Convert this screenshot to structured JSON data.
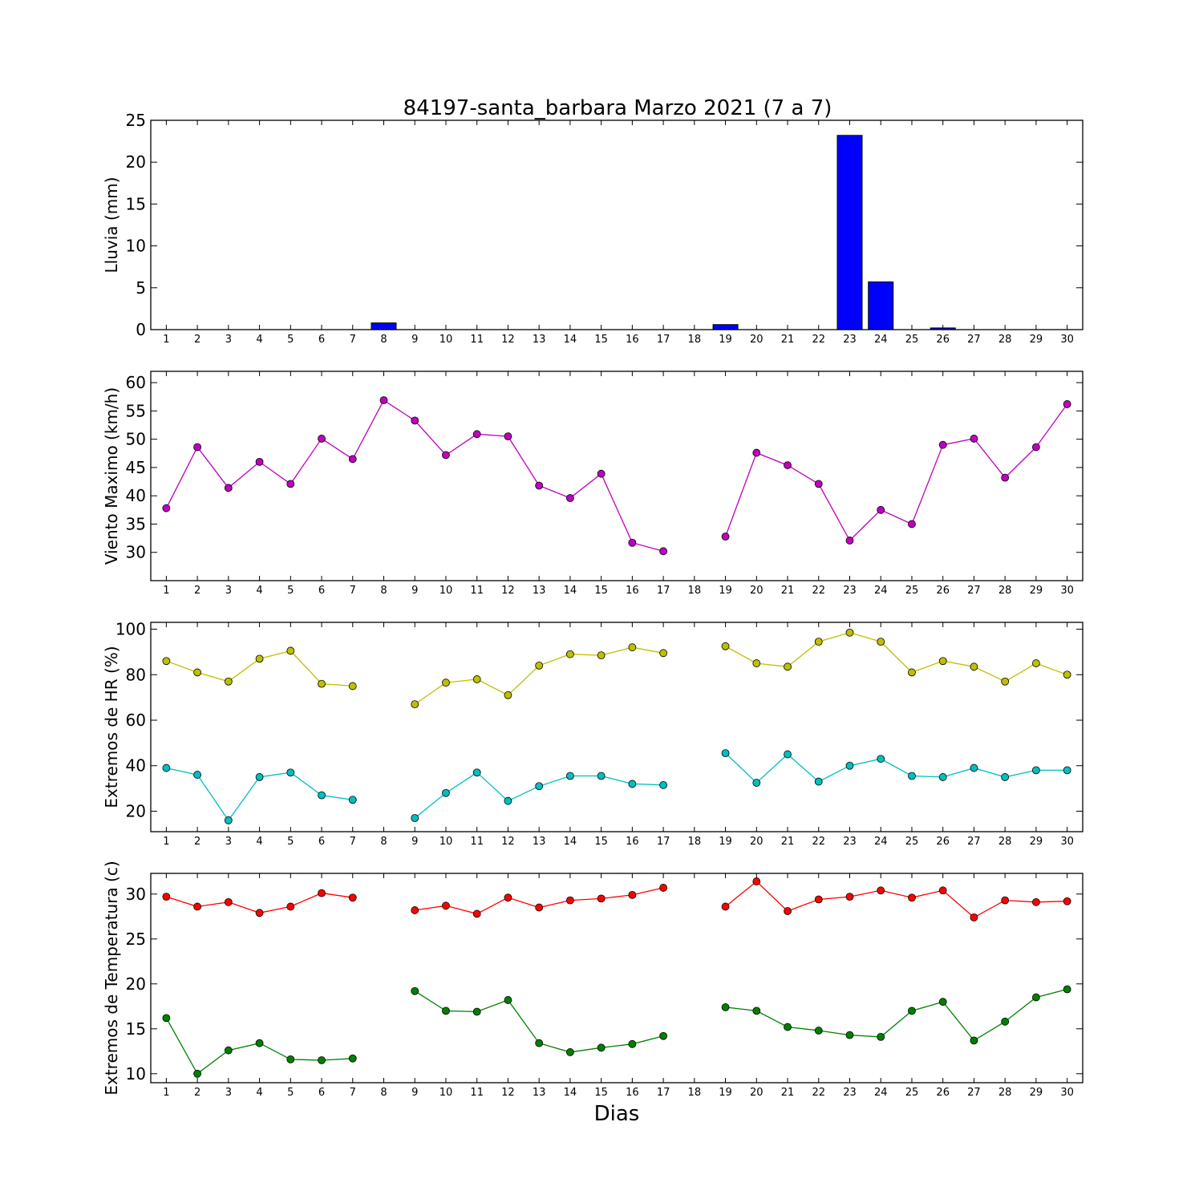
{
  "figure": {
    "title": "84197-santa_barbara Marzo 2021  (7 a 7)",
    "xlabel": "Dias"
  },
  "chart_data": [
    {
      "type": "bar",
      "ylabel": "Lluvia (mm)",
      "categories": [
        1,
        2,
        3,
        4,
        5,
        6,
        7,
        8,
        9,
        10,
        11,
        12,
        13,
        14,
        15,
        16,
        17,
        18,
        19,
        20,
        21,
        22,
        23,
        24,
        25,
        26,
        27,
        28,
        29,
        30
      ],
      "xlim": [
        0.5,
        30.5
      ],
      "ylim": [
        0,
        25
      ],
      "yticks": [
        0,
        5,
        10,
        15,
        20,
        25
      ],
      "color": "#0000ff",
      "series": [
        {
          "values": [
            0,
            0,
            0,
            0,
            0,
            0,
            0,
            0.8,
            0,
            0,
            0,
            0,
            0,
            0,
            0,
            0,
            0,
            0,
            0.6,
            0,
            0,
            0,
            23.2,
            5.7,
            0,
            0.2,
            0,
            0,
            0,
            0
          ]
        }
      ]
    },
    {
      "type": "line",
      "ylabel": "Viento Maximo (km/h)",
      "x": [
        1,
        2,
        3,
        4,
        5,
        6,
        7,
        8,
        9,
        10,
        11,
        12,
        13,
        14,
        15,
        16,
        17,
        18,
        19,
        20,
        21,
        22,
        23,
        24,
        25,
        26,
        27,
        28,
        29,
        30
      ],
      "xlim": [
        0.5,
        30.5
      ],
      "ylim": [
        25,
        62
      ],
      "yticks": [
        30,
        35,
        40,
        45,
        50,
        55,
        60
      ],
      "series": [
        {
          "color": "#bf00bf",
          "values": [
            37.8,
            48.6,
            41.4,
            46,
            42.1,
            50.1,
            46.5,
            56.9,
            53.3,
            47.2,
            50.9,
            50.5,
            41.8,
            39.6,
            43.9,
            31.7,
            30.2,
            null,
            32.8,
            47.6,
            45.4,
            42.1,
            32.1,
            37.5,
            35,
            49,
            50.1,
            43.2,
            48.6,
            56.2
          ]
        }
      ]
    },
    {
      "type": "line",
      "ylabel": "Extremos de HR (%)",
      "x": [
        1,
        2,
        3,
        4,
        5,
        6,
        7,
        8,
        9,
        10,
        11,
        12,
        13,
        14,
        15,
        16,
        17,
        18,
        19,
        20,
        21,
        22,
        23,
        24,
        25,
        26,
        27,
        28,
        29,
        30
      ],
      "xlim": [
        0.5,
        30.5
      ],
      "ylim": [
        11,
        103
      ],
      "yticks": [
        20,
        40,
        60,
        80,
        100
      ],
      "series": [
        {
          "color": "#bfbf00",
          "values": [
            86,
            81,
            77,
            87,
            90.5,
            76,
            75,
            null,
            67,
            76.5,
            78,
            71,
            84,
            89,
            88.5,
            92,
            89.5,
            null,
            92.5,
            85,
            83.5,
            94.5,
            98.5,
            94.5,
            81,
            86,
            83.5,
            77,
            85,
            80
          ]
        },
        {
          "color": "#00bfbf",
          "values": [
            39,
            36,
            16,
            35,
            37,
            27,
            25,
            null,
            17,
            28,
            37,
            24.5,
            31,
            35.5,
            35.5,
            32,
            31.5,
            null,
            45.5,
            32.5,
            45,
            33,
            40,
            43,
            35.5,
            35,
            39,
            35,
            38,
            38
          ]
        }
      ]
    },
    {
      "type": "line",
      "ylabel": "Extremos de Temperatura (c)",
      "x": [
        1,
        2,
        3,
        4,
        5,
        6,
        7,
        8,
        9,
        10,
        11,
        12,
        13,
        14,
        15,
        16,
        17,
        18,
        19,
        20,
        21,
        22,
        23,
        24,
        25,
        26,
        27,
        28,
        29,
        30
      ],
      "xlim": [
        0.5,
        30.5
      ],
      "ylim": [
        9,
        32.3
      ],
      "yticks": [
        10,
        15,
        20,
        25,
        30
      ],
      "series": [
        {
          "color": "#ff0000",
          "values": [
            29.7,
            28.6,
            29.1,
            27.9,
            28.6,
            30.1,
            29.6,
            null,
            28.2,
            28.7,
            27.8,
            29.6,
            28.5,
            29.3,
            29.5,
            29.9,
            30.7,
            null,
            28.6,
            31.4,
            28.1,
            29.4,
            29.7,
            30.4,
            29.6,
            30.4,
            27.4,
            29.3,
            29.1,
            29.2
          ]
        },
        {
          "color": "#008000",
          "values": [
            16.2,
            10,
            12.6,
            13.4,
            11.6,
            11.5,
            11.7,
            null,
            19.2,
            17,
            16.9,
            18.2,
            13.4,
            12.4,
            12.9,
            13.3,
            14.2,
            null,
            17.4,
            17,
            15.2,
            14.8,
            14.3,
            14.1,
            17,
            18,
            13.7,
            15.8,
            18.5,
            19.4
          ]
        }
      ]
    }
  ]
}
